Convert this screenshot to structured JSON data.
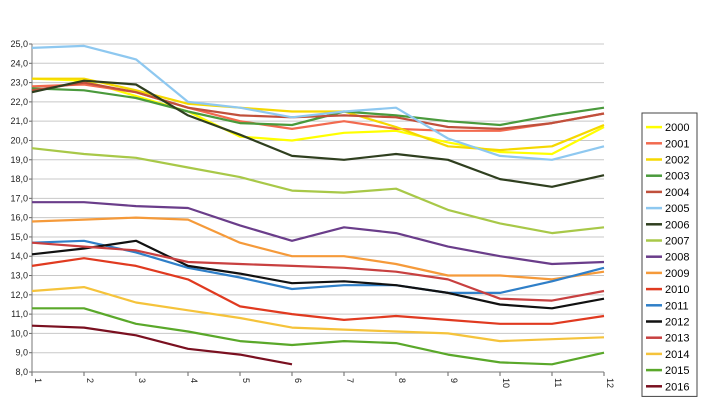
{
  "chart_data": {
    "type": "line",
    "x": [
      1,
      2,
      3,
      4,
      5,
      6,
      7,
      8,
      9,
      10,
      11,
      12
    ],
    "ylim": [
      8.0,
      25.0
    ],
    "y_ticks": [
      "8,0",
      "9,0",
      "10,0",
      "11,0",
      "12,0",
      "13,0",
      "14,0",
      "15,0",
      "16,0",
      "17,0",
      "18,0",
      "19,0",
      "20,0",
      "21,0",
      "22,0",
      "23,0",
      "24,0",
      "25,0"
    ],
    "x_ticks": [
      "1",
      "2",
      "3",
      "4",
      "5",
      "6",
      "7",
      "8",
      "9",
      "10",
      "11",
      "12"
    ],
    "grid": true,
    "legend_position": "right",
    "series": [
      {
        "name": "2000",
        "color": "#ffff00",
        "values": [
          23.2,
          23.1,
          22.3,
          21.5,
          20.2,
          20.0,
          20.4,
          20.5,
          19.9,
          19.4,
          19.3,
          20.7
        ]
      },
      {
        "name": "2001",
        "color": "#f26a4f",
        "values": [
          22.8,
          22.9,
          22.5,
          21.7,
          21.0,
          20.6,
          21.0,
          20.6,
          20.5,
          20.5,
          20.9,
          21.4
        ]
      },
      {
        "name": "2002",
        "color": "#f5d800",
        "values": [
          23.2,
          23.2,
          22.6,
          21.9,
          21.7,
          21.5,
          21.5,
          20.7,
          19.7,
          19.5,
          19.7,
          20.8
        ]
      },
      {
        "name": "2003",
        "color": "#4a9a3c",
        "values": [
          22.7,
          22.6,
          22.2,
          21.5,
          20.9,
          20.8,
          21.5,
          21.3,
          21.0,
          20.8,
          21.3,
          21.7
        ]
      },
      {
        "name": "2004",
        "color": "#c0503c",
        "values": [
          22.6,
          23.0,
          22.5,
          21.7,
          21.3,
          21.2,
          21.3,
          21.2,
          20.7,
          20.6,
          20.9,
          21.4
        ]
      },
      {
        "name": "2005",
        "color": "#8ec8f0",
        "values": [
          24.8,
          24.9,
          24.2,
          22.0,
          21.7,
          21.2,
          21.5,
          21.7,
          20.1,
          19.2,
          19.0,
          19.7
        ]
      },
      {
        "name": "2006",
        "color": "#2f3f1f",
        "values": [
          22.5,
          23.1,
          22.9,
          21.3,
          20.3,
          19.2,
          19.0,
          19.3,
          19.0,
          18.0,
          17.6,
          18.2
        ]
      },
      {
        "name": "2007",
        "color": "#a8c848",
        "values": [
          19.6,
          19.3,
          19.1,
          18.6,
          18.1,
          17.4,
          17.3,
          17.5,
          16.4,
          15.7,
          15.2,
          15.5
        ]
      },
      {
        "name": "2008",
        "color": "#6a3d8a",
        "values": [
          16.8,
          16.8,
          16.6,
          16.5,
          15.6,
          14.8,
          15.5,
          15.2,
          14.5,
          14.0,
          13.6,
          13.7
        ]
      },
      {
        "name": "2009",
        "color": "#f59a3a",
        "values": [
          15.8,
          15.9,
          16.0,
          15.9,
          14.7,
          14.0,
          14.0,
          13.6,
          13.0,
          13.0,
          12.8,
          13.2
        ]
      },
      {
        "name": "2010",
        "color": "#e03a20",
        "values": [
          13.5,
          13.9,
          13.5,
          12.8,
          11.4,
          11.0,
          10.7,
          10.9,
          10.7,
          10.5,
          10.5,
          10.9
        ]
      },
      {
        "name": "2011",
        "color": "#2f7fc8",
        "values": [
          14.7,
          14.8,
          14.2,
          13.4,
          12.9,
          12.3,
          12.5,
          12.5,
          12.1,
          12.1,
          12.7,
          13.4
        ]
      },
      {
        "name": "2012",
        "color": "#111111",
        "values": [
          14.1,
          14.4,
          14.8,
          13.5,
          13.1,
          12.6,
          12.7,
          12.5,
          12.1,
          11.5,
          11.3,
          11.8
        ]
      },
      {
        "name": "2013",
        "color": "#c84040",
        "values": [
          14.7,
          14.5,
          14.3,
          13.7,
          13.6,
          13.5,
          13.4,
          13.2,
          12.8,
          11.8,
          11.7,
          12.2
        ]
      },
      {
        "name": "2014",
        "color": "#f5c33b",
        "values": [
          12.2,
          12.4,
          11.6,
          11.2,
          10.8,
          10.3,
          10.2,
          10.1,
          10.0,
          9.6,
          9.7,
          9.8
        ]
      },
      {
        "name": "2015",
        "color": "#5aa82a",
        "values": [
          11.3,
          11.3,
          10.5,
          10.1,
          9.6,
          9.4,
          9.6,
          9.5,
          8.9,
          8.5,
          8.4,
          9.0
        ]
      },
      {
        "name": "2016",
        "color": "#7a1020",
        "values": [
          10.4,
          10.3,
          9.9,
          9.2,
          8.9,
          8.4,
          null,
          null,
          null,
          null,
          null,
          null
        ]
      }
    ]
  }
}
